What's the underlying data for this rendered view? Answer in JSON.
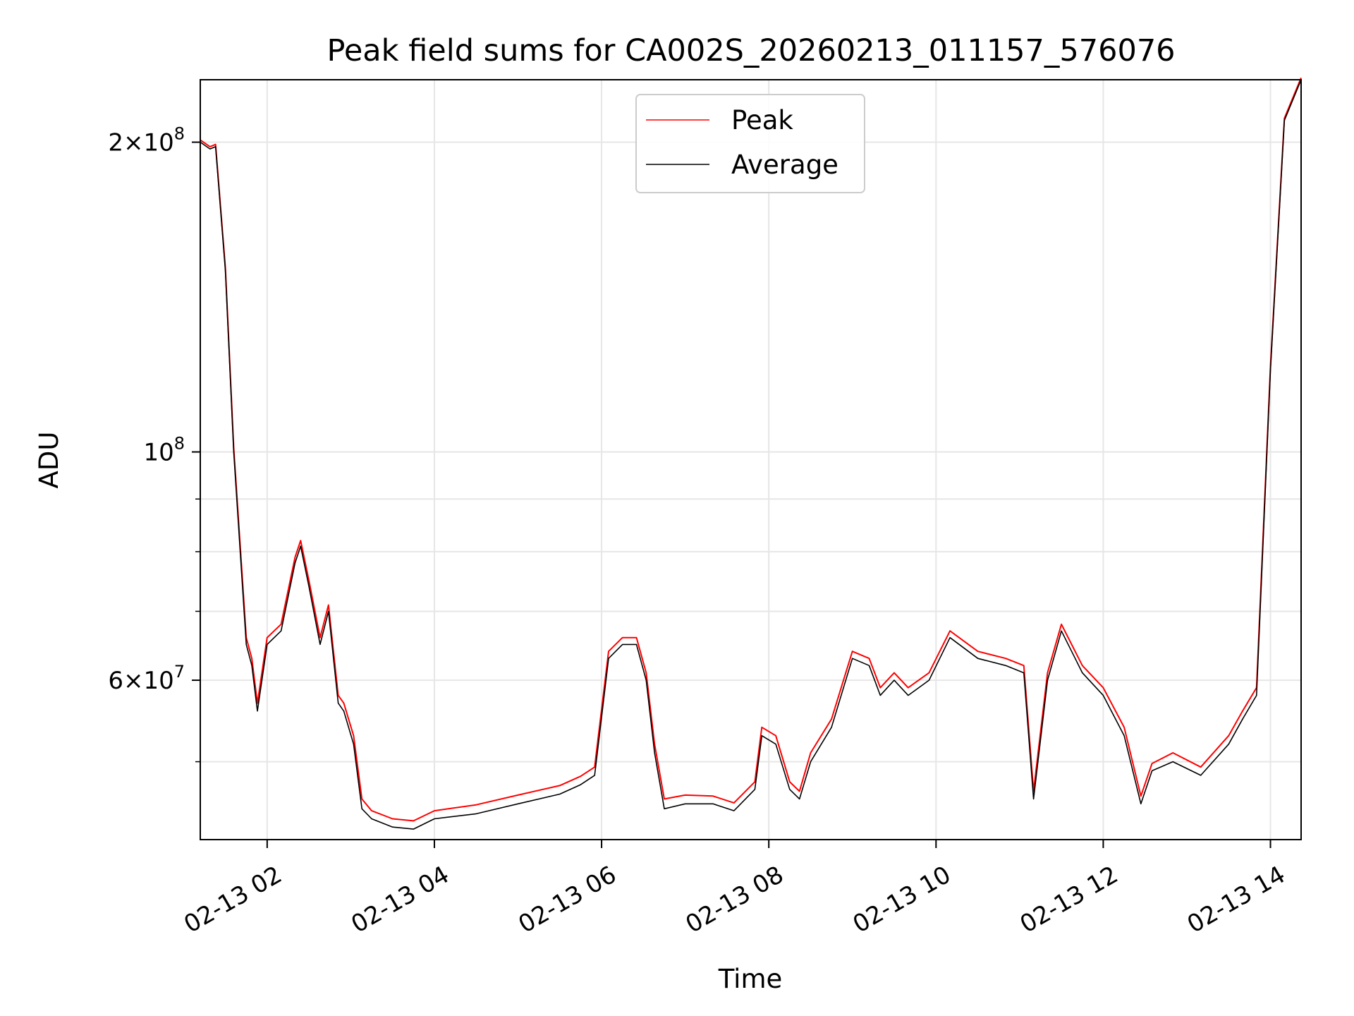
{
  "chart_data": {
    "type": "line",
    "title": "Peak field sums for CA002S_20260213_011157_576076",
    "xlabel": "Time",
    "ylabel": "ADU",
    "yscale": "log",
    "xlim": [
      "2026-02-13 01:12",
      "2026-02-13 14:22"
    ],
    "ylim": [
      42000000,
      230000000
    ],
    "x_ticks": [
      "02-13 02",
      "02-13 04",
      "02-13 06",
      "02-13 08",
      "02-13 10",
      "02-13 12",
      "02-13 14"
    ],
    "y_ticks": [
      {
        "label": "2×10",
        "exp": "8",
        "value": 200000000
      },
      {
        "label": "10",
        "exp": "8",
        "value": 100000000
      },
      {
        "label": "6×10",
        "exp": "7",
        "value": 60000000
      }
    ],
    "grid": true,
    "legend": "upper center",
    "series": [
      {
        "name": "Peak",
        "color": "#ff0000"
      },
      {
        "name": "Average",
        "color": "#000000"
      }
    ],
    "x": [
      "2026-02-13 01:12",
      "2026-02-13 01:19",
      "2026-02-13 01:23",
      "2026-02-13 01:30",
      "2026-02-13 01:36",
      "2026-02-13 01:45",
      "2026-02-13 01:49",
      "2026-02-13 01:53",
      "2026-02-13 02:00",
      "2026-02-13 02:10",
      "2026-02-13 02:20",
      "2026-02-13 02:24",
      "2026-02-13 02:30",
      "2026-02-13 02:38",
      "2026-02-13 02:44",
      "2026-02-13 02:51",
      "2026-02-13 02:55",
      "2026-02-13 03:02",
      "2026-02-13 03:08",
      "2026-02-13 03:15",
      "2026-02-13 03:30",
      "2026-02-13 03:45",
      "2026-02-13 04:00",
      "2026-02-13 04:30",
      "2026-02-13 05:00",
      "2026-02-13 05:30",
      "2026-02-13 05:45",
      "2026-02-13 05:55",
      "2026-02-13 06:05",
      "2026-02-13 06:15",
      "2026-02-13 06:25",
      "2026-02-13 06:32",
      "2026-02-13 06:38",
      "2026-02-13 06:45",
      "2026-02-13 07:00",
      "2026-02-13 07:20",
      "2026-02-13 07:35",
      "2026-02-13 07:50",
      "2026-02-13 07:55",
      "2026-02-13 08:05",
      "2026-02-13 08:15",
      "2026-02-13 08:22",
      "2026-02-13 08:30",
      "2026-02-13 08:45",
      "2026-02-13 09:00",
      "2026-02-13 09:12",
      "2026-02-13 09:20",
      "2026-02-13 09:30",
      "2026-02-13 09:40",
      "2026-02-13 09:55",
      "2026-02-13 10:10",
      "2026-02-13 10:30",
      "2026-02-13 10:50",
      "2026-02-13 11:03",
      "2026-02-13 11:10",
      "2026-02-13 11:20",
      "2026-02-13 11:30",
      "2026-02-13 11:45",
      "2026-02-13 12:00",
      "2026-02-13 12:15",
      "2026-02-13 12:27",
      "2026-02-13 12:35",
      "2026-02-13 12:50",
      "2026-02-13 13:10",
      "2026-02-13 13:30",
      "2026-02-13 13:40",
      "2026-02-13 13:50",
      "2026-02-13 14:00",
      "2026-02-13 14:10",
      "2026-02-13 14:22"
    ],
    "values_average": [
      200000000,
      197000000,
      198000000,
      150000000,
      100000000,
      65000000,
      62000000,
      56000000,
      65000000,
      67000000,
      78000000,
      81000000,
      74000000,
      65000000,
      70000000,
      57000000,
      56000000,
      52000000,
      45000000,
      44000000,
      43200000,
      43000000,
      44000000,
      44500000,
      45500000,
      46500000,
      47500000,
      48500000,
      63000000,
      65000000,
      65000000,
      60000000,
      51000000,
      45000000,
      45500000,
      45500000,
      44800000,
      47000000,
      53000000,
      52000000,
      47000000,
      46000000,
      50000000,
      54000000,
      63000000,
      62000000,
      58000000,
      60000000,
      58000000,
      60000000,
      66000000,
      63000000,
      62000000,
      61000000,
      46000000,
      60000000,
      67000000,
      61000000,
      58000000,
      53000000,
      45500000,
      49000000,
      50000000,
      48500000,
      52000000,
      55000000,
      58000000,
      120000000,
      210000000,
      230000000
    ],
    "values_peak": [
      201000000,
      198000000,
      199000000,
      151000000,
      101000000,
      66000000,
      63000000,
      57000000,
      66000000,
      68000000,
      79000000,
      82000000,
      75000000,
      66000000,
      71000000,
      58000000,
      57000000,
      53000000,
      46000000,
      44800000,
      44000000,
      43800000,
      44800000,
      45400000,
      46400000,
      47400000,
      48400000,
      49400000,
      64000000,
      66000000,
      66000000,
      61000000,
      52000000,
      46000000,
      46400000,
      46300000,
      45600000,
      47800000,
      54000000,
      53000000,
      47800000,
      46800000,
      51000000,
      55000000,
      64000000,
      63000000,
      59000000,
      61000000,
      59000000,
      61000000,
      67000000,
      64000000,
      63000000,
      62000000,
      46800000,
      61000000,
      68000000,
      62000000,
      59000000,
      54000000,
      46300000,
      49800000,
      51000000,
      49400000,
      53000000,
      56000000,
      59000000,
      121000000,
      211000000,
      231000000
    ]
  }
}
